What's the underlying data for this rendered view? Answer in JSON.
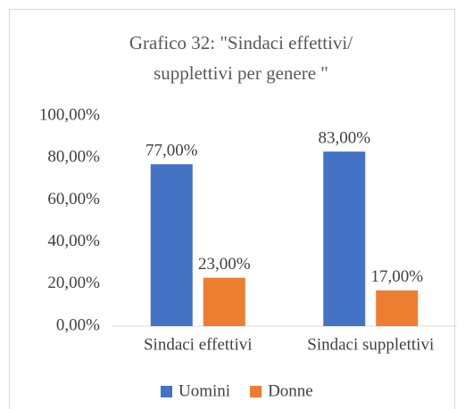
{
  "chart_data": {
    "type": "bar",
    "title": [
      "Grafico 32: \"Sindaci effettivi/",
      "supplettivi  per genere \""
    ],
    "categories": [
      "Sindaci effettivi",
      "Sindaci supplettivi"
    ],
    "series": [
      {
        "name": "Uomini",
        "color": "#4472c4",
        "values": [
          77,
          83
        ],
        "value_labels": [
          "77,00%",
          "83,00%"
        ]
      },
      {
        "name": "Donne",
        "color": "#ed7d31",
        "values": [
          23,
          17
        ],
        "value_labels": [
          "23,00%",
          "17,00%"
        ]
      }
    ],
    "ylim": [
      0,
      100
    ],
    "yticks": [
      {
        "value": 0,
        "label": "0,00%"
      },
      {
        "value": 20,
        "label": "20,00%"
      },
      {
        "value": 40,
        "label": "40,00%"
      },
      {
        "value": 60,
        "label": "60,00%"
      },
      {
        "value": 80,
        "label": "80,00%"
      },
      {
        "value": 100,
        "label": "100,00%"
      }
    ],
    "grid": false,
    "legend": "bottom"
  }
}
